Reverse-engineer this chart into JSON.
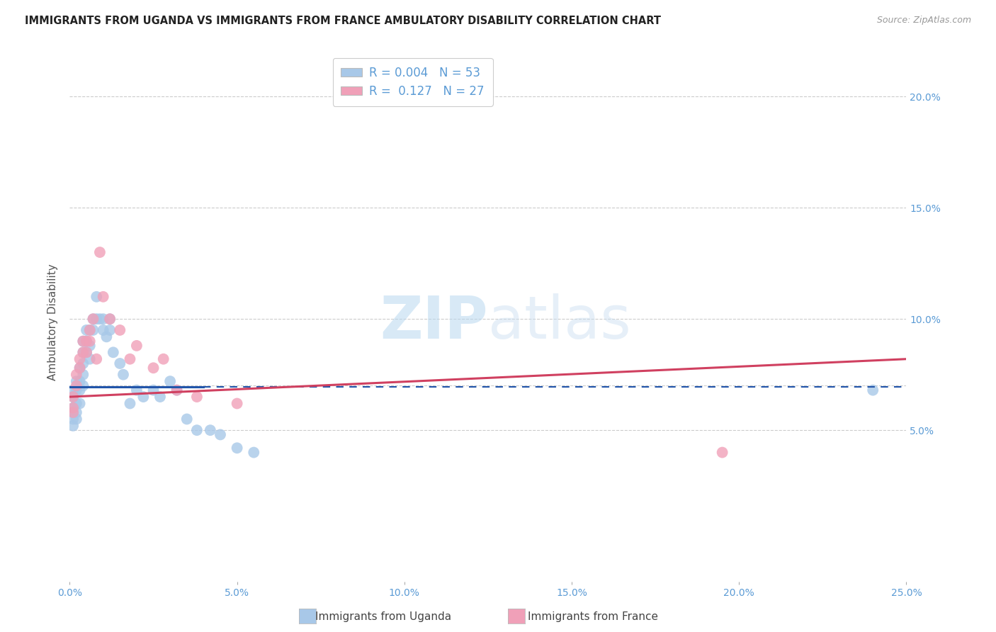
{
  "title": "IMMIGRANTS FROM UGANDA VS IMMIGRANTS FROM FRANCE AMBULATORY DISABILITY CORRELATION CHART",
  "source": "Source: ZipAtlas.com",
  "ylabel": "Ambulatory Disability",
  "xlim": [
    0.0,
    0.25
  ],
  "ylim": [
    -0.018,
    0.215
  ],
  "ytick_vals": [
    0.05,
    0.1,
    0.15,
    0.2
  ],
  "ytick_labels": [
    "5.0%",
    "10.0%",
    "15.0%",
    "20.0%"
  ],
  "xtick_vals": [
    0.0,
    0.05,
    0.1,
    0.15,
    0.2,
    0.25
  ],
  "xtick_labels": [
    "0.0%",
    "5.0%",
    "10.0%",
    "15.0%",
    "20.0%",
    "25.0%"
  ],
  "background_color": "#ffffff",
  "grid_color": "#cccccc",
  "axis_label_color": "#5b9bd5",
  "legend_uganda_R": "0.004",
  "legend_uganda_N": "53",
  "legend_france_R": "0.127",
  "legend_france_N": "27",
  "uganda_color": "#a8c8e8",
  "france_color": "#f0a0b8",
  "uganda_line_color": "#2255aa",
  "france_line_color": "#d04060",
  "uganda_line_solid_end": 0.04,
  "uganda_line_y_start": 0.0695,
  "uganda_line_y_end": 0.0695,
  "france_line_y_start": 0.065,
  "france_line_y_end": 0.082,
  "uganda_x": [
    0.001,
    0.001,
    0.001,
    0.001,
    0.001,
    0.001,
    0.002,
    0.002,
    0.002,
    0.002,
    0.002,
    0.003,
    0.003,
    0.003,
    0.003,
    0.004,
    0.004,
    0.004,
    0.004,
    0.004,
    0.005,
    0.005,
    0.005,
    0.006,
    0.006,
    0.006,
    0.007,
    0.007,
    0.008,
    0.008,
    0.009,
    0.01,
    0.01,
    0.011,
    0.012,
    0.012,
    0.013,
    0.015,
    0.016,
    0.018,
    0.02,
    0.022,
    0.025,
    0.027,
    0.03,
    0.032,
    0.035,
    0.038,
    0.042,
    0.045,
    0.05,
    0.055,
    0.24
  ],
  "uganda_y": [
    0.068,
    0.065,
    0.06,
    0.058,
    0.055,
    0.052,
    0.072,
    0.068,
    0.062,
    0.058,
    0.055,
    0.078,
    0.072,
    0.068,
    0.062,
    0.09,
    0.085,
    0.08,
    0.075,
    0.07,
    0.095,
    0.09,
    0.085,
    0.095,
    0.088,
    0.082,
    0.1,
    0.095,
    0.11,
    0.1,
    0.1,
    0.1,
    0.095,
    0.092,
    0.1,
    0.095,
    0.085,
    0.08,
    0.075,
    0.062,
    0.068,
    0.065,
    0.068,
    0.065,
    0.072,
    0.068,
    0.055,
    0.05,
    0.05,
    0.048,
    0.042,
    0.04,
    0.068
  ],
  "france_x": [
    0.001,
    0.001,
    0.001,
    0.002,
    0.002,
    0.003,
    0.003,
    0.004,
    0.004,
    0.005,
    0.005,
    0.006,
    0.006,
    0.007,
    0.008,
    0.009,
    0.01,
    0.012,
    0.015,
    0.018,
    0.02,
    0.025,
    0.028,
    0.032,
    0.038,
    0.05,
    0.195
  ],
  "france_y": [
    0.065,
    0.06,
    0.058,
    0.075,
    0.07,
    0.082,
    0.078,
    0.09,
    0.085,
    0.09,
    0.085,
    0.095,
    0.09,
    0.1,
    0.082,
    0.13,
    0.11,
    0.1,
    0.095,
    0.082,
    0.088,
    0.078,
    0.082,
    0.068,
    0.065,
    0.062,
    0.04
  ]
}
